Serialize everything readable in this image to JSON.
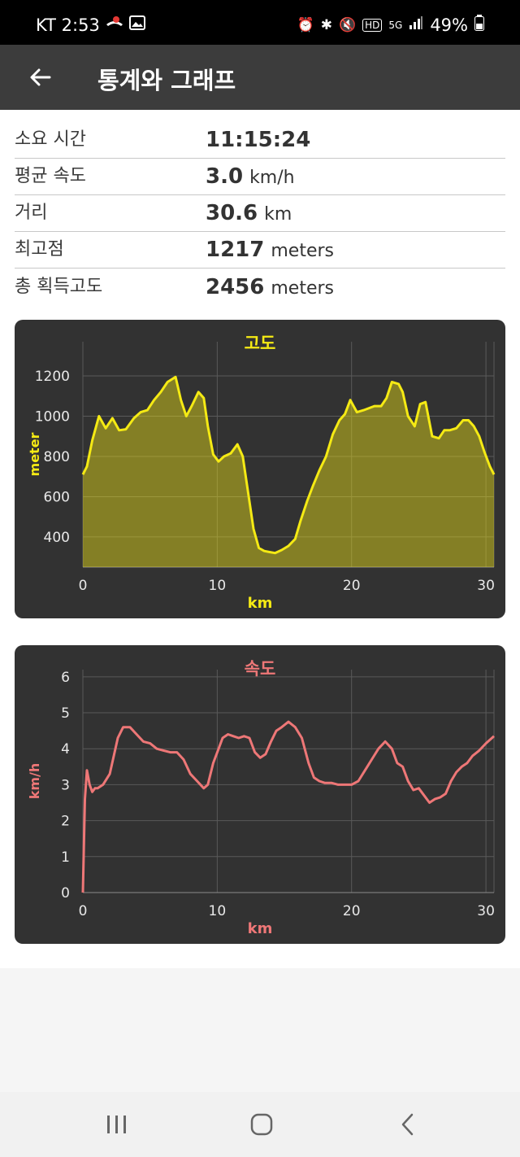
{
  "status_bar": {
    "carrier_time": "KT 2:53",
    "battery": "49%",
    "network": "5G"
  },
  "app_bar": {
    "title": "통계와 그래프",
    "back_icon": "arrow-left-icon"
  },
  "stats": [
    {
      "label": "소요 시간",
      "value": "11:15:24",
      "unit": ""
    },
    {
      "label": "평균 속도",
      "value": "3.0",
      "unit": "km/h"
    },
    {
      "label": "거리",
      "value": "30.6",
      "unit": "km"
    },
    {
      "label": "최고점",
      "value": "1217",
      "unit": "meters"
    },
    {
      "label": "총 획득고도",
      "value": "2456",
      "unit": "meters"
    }
  ],
  "colors": {
    "elevation": "#f5ea14",
    "speed": "#ee7777",
    "card_bg": "#323232"
  },
  "nav_bar": {
    "recent_icon": "recent-apps-icon",
    "home_icon": "home-icon",
    "back_icon": "nav-back-icon"
  },
  "chart_data": [
    {
      "type": "area",
      "title": "고도",
      "xlabel": "km",
      "ylabel": "meter",
      "xlim": [
        0,
        30.6
      ],
      "ylim": [
        250,
        1370
      ],
      "xticks": [
        0,
        10,
        20,
        30
      ],
      "yticks": [
        400,
        600,
        800,
        1000,
        1200
      ],
      "grid": true,
      "x": [
        0,
        0.3,
        0.7,
        1.2,
        1.7,
        2.2,
        2.7,
        3.2,
        3.8,
        4.3,
        4.8,
        5.3,
        5.8,
        6.3,
        6.9,
        7.3,
        7.7,
        8.1,
        8.6,
        9.0,
        9.3,
        9.7,
        10.1,
        10.5,
        11.0,
        11.5,
        11.9,
        12.3,
        12.7,
        13.1,
        13.5,
        13.9,
        14.3,
        14.8,
        15.3,
        15.8,
        16.2,
        16.7,
        17.1,
        17.6,
        18.1,
        18.6,
        19.1,
        19.5,
        19.9,
        20.4,
        20.9,
        21.3,
        21.7,
        22.2,
        22.6,
        23.0,
        23.5,
        23.8,
        24.2,
        24.7,
        25.1,
        25.5,
        26.0,
        26.5,
        26.9,
        27.3,
        27.8,
        28.3,
        28.7,
        29.1,
        29.5,
        29.9,
        30.3,
        30.6
      ],
      "y": [
        710,
        750,
        880,
        1000,
        940,
        990,
        930,
        935,
        990,
        1020,
        1030,
        1080,
        1120,
        1170,
        1195,
        1080,
        1000,
        1050,
        1120,
        1090,
        950,
        810,
        775,
        800,
        815,
        860,
        800,
        620,
        440,
        345,
        330,
        325,
        320,
        335,
        355,
        390,
        480,
        580,
        650,
        730,
        800,
        910,
        980,
        1010,
        1080,
        1020,
        1030,
        1040,
        1050,
        1050,
        1090,
        1170,
        1160,
        1120,
        1000,
        950,
        1060,
        1070,
        900,
        890,
        930,
        930,
        940,
        980,
        980,
        950,
        900,
        820,
        750,
        710
      ]
    },
    {
      "type": "line",
      "title": "속도",
      "xlabel": "km",
      "ylabel": "km/h",
      "xlim": [
        0,
        30.6
      ],
      "ylim": [
        0,
        6.2
      ],
      "xticks": [
        0,
        10,
        20,
        30
      ],
      "yticks": [
        0,
        1,
        2,
        3,
        4,
        5,
        6
      ],
      "grid": true,
      "x": [
        0,
        0.15,
        0.3,
        0.5,
        0.7,
        0.9,
        1.1,
        1.5,
        2.0,
        2.6,
        3.0,
        3.5,
        4.0,
        4.5,
        5.0,
        5.5,
        6.0,
        6.5,
        7.0,
        7.5,
        8.0,
        8.5,
        9.0,
        9.3,
        9.7,
        10.0,
        10.4,
        10.8,
        11.2,
        11.6,
        12.0,
        12.4,
        12.8,
        13.2,
        13.6,
        14.0,
        14.4,
        14.8,
        15.3,
        15.8,
        16.3,
        16.8,
        17.2,
        17.6,
        18.0,
        18.5,
        19.0,
        19.5,
        20.0,
        20.5,
        21.0,
        21.5,
        22.0,
        22.5,
        23.0,
        23.4,
        23.8,
        24.2,
        24.6,
        25.0,
        25.4,
        25.8,
        26.2,
        26.6,
        27.0,
        27.4,
        27.8,
        28.2,
        28.6,
        29.0,
        29.5,
        30.0,
        30.6
      ],
      "y": [
        0,
        2.6,
        3.4,
        3.0,
        2.8,
        2.9,
        2.9,
        3.0,
        3.3,
        4.3,
        4.6,
        4.6,
        4.4,
        4.2,
        4.15,
        4.0,
        3.95,
        3.9,
        3.9,
        3.7,
        3.3,
        3.1,
        2.9,
        3.0,
        3.6,
        3.9,
        4.3,
        4.4,
        4.35,
        4.3,
        4.35,
        4.3,
        3.9,
        3.75,
        3.85,
        4.2,
        4.5,
        4.6,
        4.75,
        4.6,
        4.3,
        3.6,
        3.2,
        3.1,
        3.05,
        3.05,
        3.0,
        3.0,
        3.0,
        3.1,
        3.4,
        3.7,
        4.0,
        4.2,
        4.0,
        3.6,
        3.5,
        3.1,
        2.85,
        2.9,
        2.7,
        2.5,
        2.6,
        2.65,
        2.75,
        3.1,
        3.35,
        3.5,
        3.6,
        3.8,
        3.95,
        4.15,
        4.35
      ]
    }
  ]
}
